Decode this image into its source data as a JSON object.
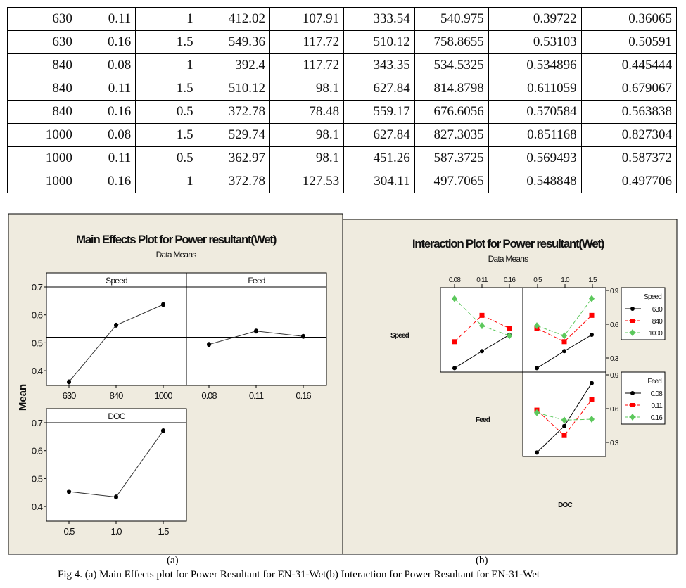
{
  "table": {
    "rows": [
      [
        "630",
        "0.11",
        "1",
        "412.02",
        "107.91",
        "333.54",
        "540.975",
        "0.39722",
        "0.36065"
      ],
      [
        "630",
        "0.16",
        "1.5",
        "549.36",
        "117.72",
        "510.12",
        "758.8655",
        "0.53103",
        "0.50591"
      ],
      [
        "840",
        "0.08",
        "1",
        "392.4",
        "117.72",
        "343.35",
        "534.5325",
        "0.534896",
        "0.445444"
      ],
      [
        "840",
        "0.11",
        "1.5",
        "510.12",
        "98.1",
        "627.84",
        "814.8798",
        "0.611059",
        "0.679067"
      ],
      [
        "840",
        "0.16",
        "0.5",
        "372.78",
        "78.48",
        "559.17",
        "676.6056",
        "0.570584",
        "0.563838"
      ],
      [
        "1000",
        "0.08",
        "1.5",
        "529.74",
        "98.1",
        "627.84",
        "827.3035",
        "0.851168",
        "0.827304"
      ],
      [
        "1000",
        "0.11",
        "0.5",
        "362.97",
        "98.1",
        "451.26",
        "587.3725",
        "0.569493",
        "0.587372"
      ],
      [
        "1000",
        "0.16",
        "1",
        "372.78",
        "127.53",
        "304.11",
        "497.7065",
        "0.548848",
        "0.497706"
      ]
    ]
  },
  "captions": {
    "a": "(a)",
    "b": "(b)",
    "fig": "Fig 4. (a) Main Effects plot for Power Resultant for EN-31-Wet(b) Interaction for Power Resultant for EN-31-Wet"
  },
  "chart_data": [
    {
      "type": "line",
      "title": "Main Effects Plot for Power resultant(Wet)",
      "subtitle": "Data Means",
      "ylabel": "Mean",
      "ylim": [
        0.34,
        0.75
      ],
      "yticks": [
        "0.4",
        "0.5",
        "0.6",
        "0.7"
      ],
      "grand_mean": 0.52,
      "panels": [
        {
          "name": "Speed",
          "categories": [
            "630",
            "840",
            "1000"
          ],
          "values": [
            0.36,
            0.563,
            0.637
          ]
        },
        {
          "name": "Feed",
          "categories": [
            "0.08",
            "0.11",
            "0.16"
          ],
          "values": [
            0.494,
            0.542,
            0.523
          ]
        },
        {
          "name": "DOC",
          "categories": [
            "0.5",
            "1.0",
            "1.5"
          ],
          "values": [
            0.453,
            0.434,
            0.671
          ]
        }
      ]
    },
    {
      "type": "line",
      "title": "Interaction Plot for Power resultant(Wet)",
      "subtitle": "Data Means",
      "yticks": [
        "0.3",
        "0.6",
        "0.9"
      ],
      "row_labels": [
        "Speed",
        "Feed",
        "DOC"
      ],
      "x_feed": [
        "0.08",
        "0.11",
        "0.16"
      ],
      "x_doc": [
        "0.5",
        "1.0",
        "1.5"
      ],
      "colors": [
        "#000000",
        "#ff0000",
        "#5cc85c"
      ],
      "legends": [
        {
          "title": "Speed",
          "items": [
            "630",
            "840",
            "1000"
          ]
        },
        {
          "title": "Feed",
          "items": [
            "0.08",
            "0.11",
            "0.16"
          ]
        }
      ],
      "panels": [
        {
          "name": "Speed x Feed",
          "series": [
            {
              "name": "630",
              "values": [
                0.21,
                0.361,
                0.506
              ]
            },
            {
              "name": "840",
              "values": [
                0.445,
                0.679,
                0.564
              ]
            },
            {
              "name": "1000",
              "values": [
                0.827,
                0.587,
                0.498
              ]
            }
          ]
        },
        {
          "name": "Speed x DOC",
          "series": [
            {
              "name": "630",
              "values": [
                0.21,
                0.361,
                0.506
              ]
            },
            {
              "name": "840",
              "values": [
                0.564,
                0.445,
                0.679
              ]
            },
            {
              "name": "1000",
              "values": [
                0.587,
                0.498,
                0.827
              ]
            }
          ]
        },
        {
          "name": "Feed x DOC",
          "series": [
            {
              "name": "0.08",
              "values": [
                0.21,
                0.445,
                0.827
              ]
            },
            {
              "name": "0.11",
              "values": [
                0.587,
                0.361,
                0.679
              ]
            },
            {
              "name": "0.16",
              "values": [
                0.564,
                0.498,
                0.506
              ]
            }
          ]
        }
      ]
    }
  ]
}
